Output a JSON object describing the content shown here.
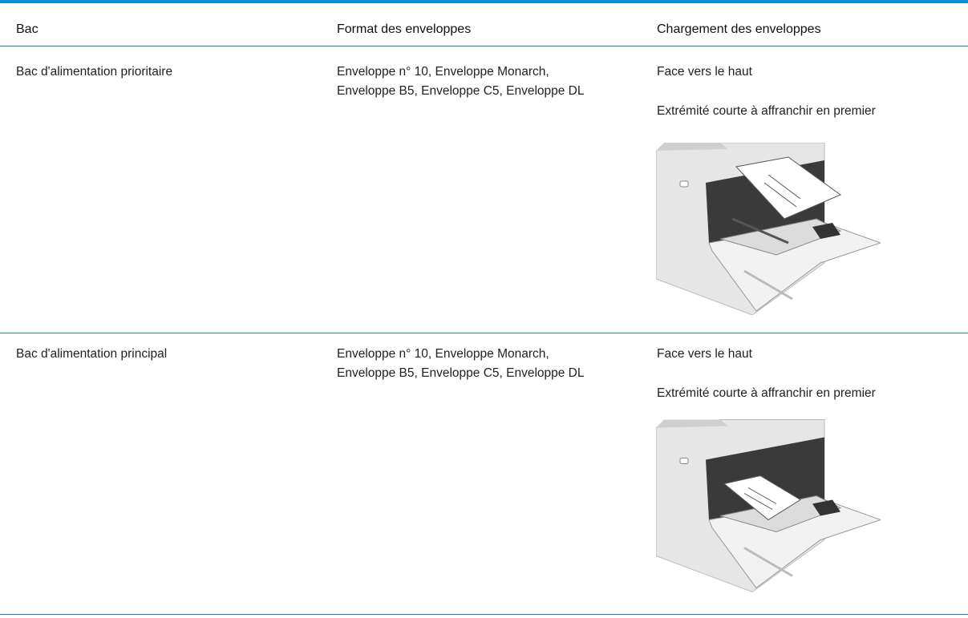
{
  "table": {
    "header": [
      "Bac",
      "Format des enveloppes",
      "Chargement des enveloppes"
    ],
    "rows": [
      {
        "tray": "Bac d'alimentation prioritaire",
        "formats": [
          "Enveloppe n° 10, Enveloppe Monarch,",
          "Enveloppe B5, Enveloppe C5, Enveloppe DL"
        ],
        "loading": [
          "Face vers le haut",
          "Extrémité courte à affranchir en premier"
        ]
      },
      {
        "tray": "Bac d'alimentation principal",
        "formats": [
          "Enveloppe n° 10, Enveloppe Monarch,",
          "Enveloppe B5, Enveloppe C5, Enveloppe DL"
        ],
        "loading": [
          "Face vers le haut",
          "Extrémité courte à affranchir en premier"
        ]
      }
    ]
  }
}
